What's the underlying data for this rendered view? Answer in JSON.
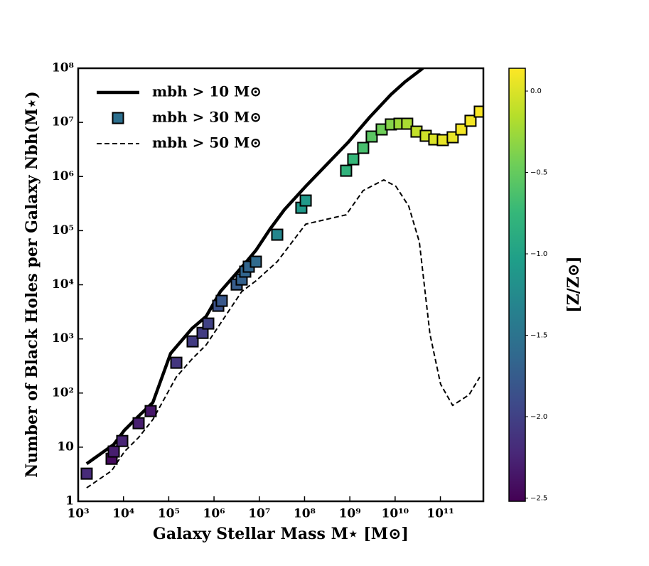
{
  "chart_data": {
    "type": "line",
    "xlabel": "Galaxy Stellar Mass M⋆ [M⊙]",
    "ylabel": "Number of Black Holes per Galaxy Nbh(M⋆)",
    "xscale": "log",
    "yscale": "log",
    "xlim": [
      1000,
      890000000000
    ],
    "ylim": [
      1,
      100000000
    ],
    "xticks": [
      {
        "value": 1000,
        "label": "10³"
      },
      {
        "value": 10000,
        "label": "10⁴"
      },
      {
        "value": 100000,
        "label": "10⁵"
      },
      {
        "value": 1000000,
        "label": "10⁶"
      },
      {
        "value": 10000000,
        "label": "10⁷"
      },
      {
        "value": 100000000,
        "label": "10⁸"
      },
      {
        "value": 1000000000,
        "label": "10⁹"
      },
      {
        "value": 10000000000,
        "label": "10¹⁰"
      },
      {
        "value": 100000000000,
        "label": "10¹¹"
      }
    ],
    "yticks": [
      1,
      10,
      {
        "value": 100,
        "label": "10²"
      },
      {
        "value": 1000,
        "label": "10³"
      },
      {
        "value": 10000,
        "label": "10⁴"
      },
      {
        "value": 100000,
        "label": "10⁵"
      },
      {
        "value": 1000000,
        "label": "10⁶"
      },
      {
        "value": 10000000,
        "label": "10⁷"
      },
      {
        "value": 100000000,
        "label": "10⁸"
      }
    ],
    "legend": "upper left",
    "colormap": "viridis",
    "clabel": "[Z/Z⊙]",
    "clim": [
      -2.52,
      0.14
    ],
    "cticks": [
      {
        "value": 0,
        "label": "0.0"
      },
      {
        "value": -0.5,
        "label": "−0.5"
      },
      {
        "value": -1,
        "label": "−1.0"
      },
      {
        "value": -1.5,
        "label": "−1.5"
      },
      {
        "value": -2,
        "label": "−2.0"
      },
      {
        "value": -2.5,
        "label": "−2.5"
      }
    ],
    "series": [
      {
        "name": "mbh > 10 M⊙",
        "type": "line",
        "style": "solid",
        "color": "#000000",
        "x": [
          1540,
          6100,
          10500,
          21600,
          44500,
          110000,
          325000,
          670000,
          1380000,
          4890000,
          8410000,
          17300000,
          35700000,
          106000000,
          923000000,
          2730000000,
          8070000000,
          16600000000,
          41100000000
        ],
        "values": [
          4.94,
          11.2,
          20.5,
          37.5,
          66.7,
          538,
          1550,
          2600,
          7480,
          25100,
          43200,
          107000,
          243000,
          659000,
          4300000,
          12400000,
          32700000,
          56300000,
          100000000
        ]
      },
      {
        "name": "mbh > 30 M⊙",
        "type": "scatter",
        "marker": "square",
        "color": "#2c6f8e",
        "x": [
          1540,
          5470,
          6100,
          9400,
          21600,
          39900,
          147000,
          337000,
          559000,
          746000,
          1240000,
          1480000,
          3170000,
          4080000,
          4890000,
          5860000,
          8410000,
          24900000,
          84900000,
          106000000,
          828000000,
          1190000000,
          1970000000,
          3040000000,
          5050000000,
          8070000000,
          12500000000,
          18500000000,
          29700000000,
          47500000000,
          73300000000,
          113000000000,
          187000000000,
          290000000000,
          463000000000,
          742000000000
        ],
        "values": [
          3.24,
          6.1,
          8.3,
          13,
          27.7,
          46.4,
          363,
          900,
          1290,
          1920,
          4090,
          5050,
          10100,
          12500,
          17500,
          21600,
          26700,
          84200,
          265000,
          360000,
          1280000,
          2080000,
          3380000,
          5480000,
          7410000,
          9170000,
          9450000,
          9450000,
          6760000,
          5650000,
          4850000,
          4710000,
          5310000,
          7410000,
          10700000,
          15800000
        ],
        "z": [
          -2.2,
          -2.45,
          -2.3,
          -2.25,
          -2.3,
          -2.35,
          -2.1,
          -2.05,
          -2.05,
          -2.0,
          -1.85,
          -1.8,
          -1.75,
          -1.7,
          -1.65,
          -1.65,
          -1.6,
          -1.3,
          -1.1,
          -1.1,
          -0.8,
          -0.75,
          -0.65,
          -0.55,
          -0.45,
          -0.35,
          -0.25,
          -0.2,
          -0.1,
          -0.05,
          0,
          0.05,
          0.05,
          0.1,
          0.1,
          0.12
        ]
      },
      {
        "name": "mbh > 50 M⊙",
        "type": "line",
        "style": "dashed",
        "color": "#000000",
        "x": [
          1540,
          5470,
          10500,
          21600,
          44500,
          147000,
          325000,
          670000,
          1380000,
          4080000,
          8410000,
          24900000,
          106000000,
          828000000,
          1970000000,
          5620000000,
          10400000000,
          20000000000,
          34300000000,
          59000000000,
          101000000000,
          187000000000,
          431000000000,
          742000000000
        ],
        "values": [
          1.77,
          3.66,
          8.26,
          15.1,
          32.3,
          198,
          423,
          773,
          1920,
          7480,
          11800,
          26700,
          132000,
          196000,
          550000,
          865000,
          659000,
          283000,
          62200,
          1220,
          146,
          59,
          92.9,
          198
        ]
      }
    ]
  }
}
